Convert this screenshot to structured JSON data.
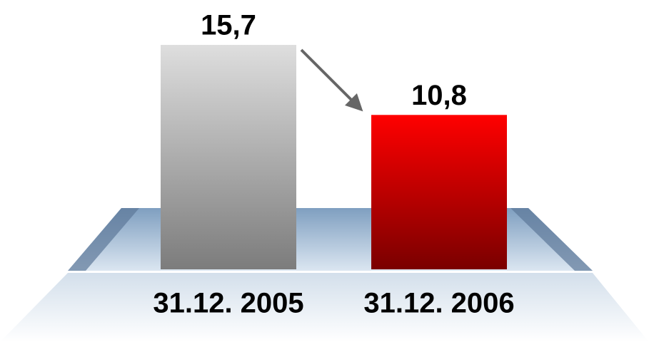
{
  "chart_data": {
    "type": "bar",
    "categories": [
      "31.12. 2005",
      "31.12. 2006"
    ],
    "values": [
      15.7,
      10.8
    ],
    "value_labels": [
      "15,7",
      "10,8"
    ],
    "colors": [
      [
        "#dedede",
        "#7c7c7c"
      ],
      [
        "#ff0000",
        "#7a0000"
      ]
    ]
  }
}
